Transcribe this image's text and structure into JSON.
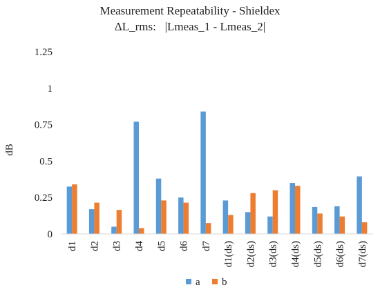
{
  "chart_data": {
    "type": "bar",
    "title_line1": "Measurement Repeatability - Shieldex",
    "title_line2": "ΔL_rms:   |Lmeas_1 - Lmeas_2|",
    "xlabel": "",
    "ylabel": "dB",
    "ylim": [
      0,
      1.25
    ],
    "yticks": [
      "0",
      "0.25",
      "0.5",
      "0.75",
      "1",
      "1.25"
    ],
    "ytick_values": [
      0,
      0.25,
      0.5,
      0.75,
      1,
      1.25
    ],
    "grid": false,
    "legend_position": "bottom",
    "categories": [
      "d1",
      "d2",
      "d3",
      "d4",
      "d5",
      "d6",
      "d7",
      "d1(ds)",
      "d2(ds)",
      "d3(ds)",
      "d4(ds)",
      "d5(ds)",
      "d6(ds)",
      "d7(ds)"
    ],
    "series": [
      {
        "name": "a",
        "color": "#5b9bd5",
        "values": [
          0.325,
          0.17,
          0.05,
          0.77,
          0.38,
          0.25,
          0.84,
          0.23,
          0.15,
          0.12,
          0.35,
          0.185,
          0.19,
          0.395
        ]
      },
      {
        "name": "b",
        "color": "#ed7d31",
        "values": [
          0.34,
          0.215,
          0.165,
          0.04,
          0.23,
          0.215,
          0.075,
          0.13,
          0.28,
          0.3,
          0.33,
          0.14,
          0.12,
          0.08
        ]
      }
    ]
  }
}
